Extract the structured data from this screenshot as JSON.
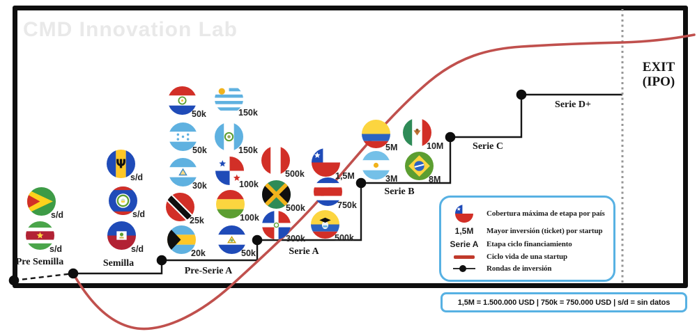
{
  "watermark": "CMD Innovation Lab",
  "exit": {
    "line1": "EXIT",
    "line2": "(IPO)"
  },
  "footnote": "1,5M = 1.500.000 USD | 750k = 750.000 USD | s/d = sin datos",
  "colors": {
    "curve_red": "#c0504d",
    "legend_red_swatch": "#c0392b",
    "legend_border_blue": "#57b1e3",
    "staircase_black": "#161616",
    "dotted_gray": "#969696",
    "watermark_gray": "#e9e9e9"
  },
  "stages": [
    {
      "label": "Pre Semilla",
      "flags": [
        {
          "country": "Guyana",
          "icon": "flag-guyana",
          "amount": "s/d"
        },
        {
          "country": "Surinam",
          "icon": "flag-suriname",
          "amount": "s/d"
        }
      ]
    },
    {
      "label": "Semilla",
      "flags": [
        {
          "country": "Barbados",
          "icon": "flag-barbados",
          "amount": "s/d"
        },
        {
          "country": "Belice",
          "icon": "flag-belize",
          "amount": "s/d"
        },
        {
          "country": "Haití",
          "icon": "flag-haiti",
          "amount": "s/d"
        }
      ]
    },
    {
      "label": "Pre-Serie A",
      "flags": [
        {
          "country": "Paraguay",
          "icon": "flag-paraguay",
          "amount": "50k"
        },
        {
          "country": "Uruguay",
          "icon": "flag-uruguay",
          "amount": "150k"
        },
        {
          "country": "Honduras",
          "icon": "flag-honduras",
          "amount": "50k"
        },
        {
          "country": "Guatemala",
          "icon": "flag-guatemala",
          "amount": "150k"
        },
        {
          "country": "Nicaragua",
          "icon": "flag-nicaragua",
          "amount": "30k"
        },
        {
          "country": "Panamá",
          "icon": "flag-panama",
          "amount": "100k"
        },
        {
          "country": "Trinidad y Tobago",
          "icon": "flag-trinidad",
          "amount": "25k"
        },
        {
          "country": "Bolivia",
          "icon": "flag-bolivia",
          "amount": "100k"
        },
        {
          "country": "Bahamas",
          "icon": "flag-bahamas",
          "amount": "20k"
        },
        {
          "country": "El Salvador",
          "icon": "flag-elsalvador",
          "amount": "50k"
        }
      ]
    },
    {
      "label": "Serie A",
      "flags": [
        {
          "country": "Perú",
          "icon": "flag-peru",
          "amount": "500k"
        },
        {
          "country": "Chile",
          "icon": "flag-chile",
          "amount": "1,5M"
        },
        {
          "country": "Jamaica",
          "icon": "flag-jamaica",
          "amount": "500k"
        },
        {
          "country": "Costa Rica",
          "icon": "flag-costarica",
          "amount": "750k"
        },
        {
          "country": "República Dominicana",
          "icon": "flag-dominicana",
          "amount": "300k"
        },
        {
          "country": "Ecuador",
          "icon": "flag-ecuador",
          "amount": "500k"
        }
      ]
    },
    {
      "label": "Serie B",
      "flags": [
        {
          "country": "Colombia",
          "icon": "flag-colombia",
          "amount": "5M"
        },
        {
          "country": "México",
          "icon": "flag-mexico",
          "amount": "10M"
        },
        {
          "country": "Argentina",
          "icon": "flag-argentina",
          "amount": "3M"
        },
        {
          "country": "Brasil",
          "icon": "flag-brasil",
          "amount": "8M"
        }
      ]
    },
    {
      "label": "Serie C",
      "flags": []
    },
    {
      "label": "Serie D+",
      "flags": []
    }
  ],
  "legend": {
    "items": [
      {
        "key": "",
        "icon": "flag-chile",
        "text": "Cobertura máxima de etapa por país"
      },
      {
        "key": "1,5M",
        "icon": "",
        "text": "Mayor inversión (ticket) por startup"
      },
      {
        "key": "Serie A",
        "icon": "",
        "text": "Etapa ciclo financiamiento"
      },
      {
        "key": "",
        "icon": "red-line",
        "text": "Ciclo vida de una startup"
      },
      {
        "key": "",
        "icon": "dot-line",
        "text": "Rondas de inversión"
      }
    ]
  }
}
